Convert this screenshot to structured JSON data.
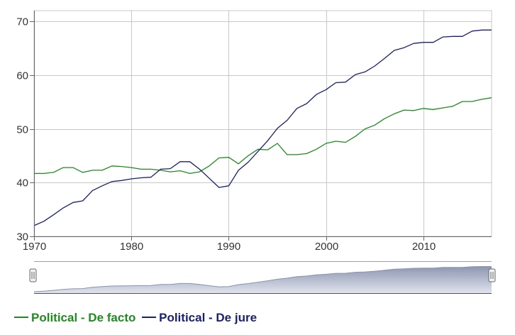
{
  "chart_data": {
    "type": "line",
    "title": "",
    "xlabel": "",
    "ylabel": "",
    "xlim": [
      1970,
      2017
    ],
    "ylim": [
      30,
      72
    ],
    "x_ticks": [
      1970,
      1980,
      1990,
      2000,
      2010
    ],
    "y_ticks": [
      30,
      40,
      50,
      60,
      70
    ],
    "grid": true,
    "legend_position": "bottom-left",
    "x": [
      1970,
      1971,
      1972,
      1973,
      1974,
      1975,
      1976,
      1977,
      1978,
      1979,
      1980,
      1981,
      1982,
      1983,
      1984,
      1985,
      1986,
      1987,
      1988,
      1989,
      1990,
      1991,
      1992,
      1993,
      1994,
      1995,
      1996,
      1997,
      1998,
      1999,
      2000,
      2001,
      2002,
      2003,
      2004,
      2005,
      2006,
      2007,
      2008,
      2009,
      2010,
      2011,
      2012,
      2013,
      2014,
      2015,
      2016,
      2017
    ],
    "series": [
      {
        "name": "Political - De facto",
        "color": "#1e8c1e",
        "values": [
          41.7,
          41.7,
          41.9,
          42.8,
          42.8,
          41.9,
          42.3,
          42.3,
          43.1,
          43.0,
          42.8,
          42.5,
          42.5,
          42.3,
          42.0,
          42.2,
          41.7,
          42.0,
          43.1,
          44.6,
          44.7,
          43.5,
          45.0,
          46.2,
          46.1,
          47.3,
          45.2,
          45.2,
          45.4,
          46.2,
          47.3,
          47.7,
          47.5,
          48.6,
          50.0,
          50.7,
          51.9,
          52.8,
          53.5,
          53.4,
          53.8,
          53.6,
          53.9,
          54.2,
          55.1,
          55.1,
          55.5,
          55.8
        ]
      },
      {
        "name": "Political - De jure",
        "color": "#1a1f6e",
        "values": [
          32.0,
          32.8,
          34.0,
          35.3,
          36.3,
          36.6,
          38.5,
          39.4,
          40.2,
          40.4,
          40.7,
          40.9,
          41.0,
          42.5,
          42.6,
          43.9,
          43.9,
          42.5,
          40.8,
          39.1,
          39.4,
          42.3,
          43.8,
          45.8,
          47.8,
          50.1,
          51.6,
          53.8,
          54.7,
          56.4,
          57.3,
          58.6,
          58.7,
          60.1,
          60.6,
          61.7,
          63.1,
          64.6,
          65.1,
          65.9,
          66.1,
          66.1,
          67.1,
          67.2,
          67.2,
          68.2,
          68.4,
          68.4
        ]
      }
    ]
  },
  "navigator": {
    "handle_left_icon": "drag-handle-icon",
    "handle_right_icon": "drag-handle-icon",
    "range": [
      1970,
      2017
    ]
  },
  "legend": {
    "items": [
      {
        "label": "Political - De facto",
        "color": "#1e8c1e"
      },
      {
        "label": "Political - De jure",
        "color": "#1a1f6e"
      }
    ]
  }
}
